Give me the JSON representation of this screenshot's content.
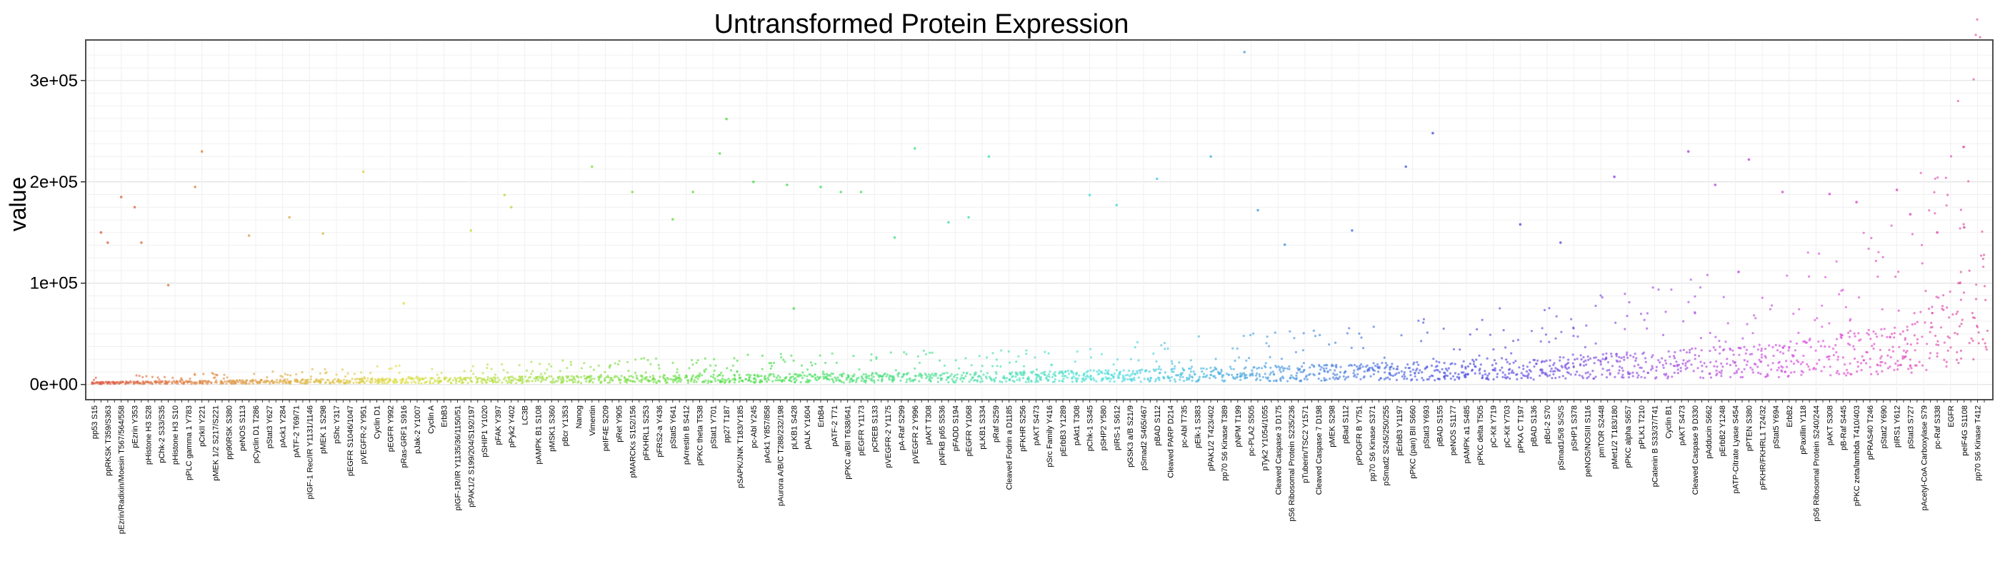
{
  "chart_data": {
    "type": "scatter",
    "title": "Untransformed Protein Expression",
    "xlabel": "",
    "ylabel": "value",
    "ylim": [
      -15000,
      340000
    ],
    "yticks": [
      0,
      100000,
      200000,
      300000
    ],
    "ytick_labels": [
      "0e+00",
      "1e+05",
      "2e+05",
      "3e+05"
    ],
    "grid": true,
    "legend": "none",
    "x_labels_shown": [
      "pp53 S15",
      "ppRKSK T359/S363",
      "pEzrin/Radixin/Moesin T567/564/558",
      "pEzrin Y353",
      "pHistone H3 S28",
      "pChk-2 S33/S35",
      "pHistone H3 S10",
      "pPLC gamma 1 Y783",
      "pCrkII Y221",
      "pMEK 1/2 S217/S221",
      "pp90RSK S380",
      "peNOS S113",
      "pCyclin D1 T286",
      "pStat3 Y627",
      "pAck1 Y284",
      "pATF-2 T69/71",
      "pIGF-1 Rec/IR Y1131/1146",
      "pMEK 1 S298",
      "pShc Y317",
      "pEGFR S1046/1047",
      "pVEGFR-2 Y951",
      "Cyclin D1",
      "pEGFR Y992",
      "pRas-GRF1 S916",
      "pJak-2 Y1007",
      "Cyclin A",
      "ErbB3",
      "pIGF-1R/IR Y1135/36/1150/51",
      "pPAK1/2 S199/204/S192/197",
      "pSHIP1 Y1020",
      "pFAK Y397",
      "pPyk2 Y402",
      "LC3B",
      "pAMPK B1 S108",
      "pMSK1 S360",
      "pBcr Y1353",
      "Nanog",
      "Vimentin",
      "peIF4E S209",
      "pRet Y905",
      "pMARCKs S152/156",
      "pFKHRL1 S253",
      "pFRS2-a Y436",
      "pStat5 Y641",
      "pArrestin B S412",
      "pPKC theta T538",
      "pStat1 Y701",
      "pp27 T187",
      "pSAPK/JNK T183/Y185",
      "pc-Abl Y245",
      "pAck1 Y857/858",
      "pAurora A/B/C T288/232/198",
      "pLKB1 S428",
      "pALK Y1604",
      "ErbB4",
      "pATF-2 T71",
      "pPKC a/BII T638/641",
      "pEGFR Y1173",
      "pCREB S133",
      "pVEGFR-2 Y1175",
      "pA-Raf S299",
      "pVEGFR 2 Y996",
      "pAKT T308",
      "pNFkB p65 S536",
      "pFADD S194",
      "pEGFR Y1068",
      "pLKB1 S334",
      "pRaf S259",
      "Cleaved Fodrin a D1185",
      "pFKHR S256",
      "pAKT S473",
      "pSrc Family Y416",
      "pErbB3 Y1289",
      "pAkt1 T308",
      "pChk-1 S345",
      "pSHP2 Y580",
      "pIRS-1 S612",
      "pGSK3 a/B S21/9",
      "pSmad2 S465/467",
      "pBAD S112",
      "Cleaved PARP D214",
      "pc-Abl T735",
      "pElk-1 S383",
      "pPAK1/2 T423/402",
      "pp70 S6 Kinase T389",
      "pNPM T199",
      "pc-PLA2 S505",
      "pTyk2 Y1054/1055",
      "Cleaved Caspase 3 D175",
      "pS6 Ribosomal Protein S235/236",
      "pTuberin/TSC2 Y1571",
      "Cleaved Caspase 7 D198",
      "pMEK S298",
      "pBad S112",
      "pPDGFR B Y751",
      "pp70 S6 Kinase S371",
      "pSmad2 S245/250/255",
      "pErbB3 Y1197",
      "pPKC (pan) BII S660",
      "pStat3 Y693",
      "pBAD S155",
      "peNOS S1177",
      "pAMPK a1 S485",
      "pPKC delta T505",
      "pC-Kit Y719",
      "pC-Kit Y703",
      "pPKA C T197",
      "pBAD S136",
      "pBcl-2 S70",
      "pSmad1/5/8 S/S/S",
      "pSHP1 S378",
      "peNOS/NOSIII S116",
      "pmTOR S2448",
      "pMet1/2 T183/180",
      "pPKC alpha S657",
      "pPLK1 T210",
      "pCatenin B S33/37/T41",
      "Cyclin B1",
      "pAKT S473",
      "Cleaved Caspase 9 D330",
      "pAdducin S662",
      "pErbB2 Y1248",
      "pATP-Citrate Lyase S454",
      "pPTEN S380",
      "pFKHR/FKHRL1 T24/32",
      "pStat5 Y694",
      "ErbB2",
      "pPaxillin Y118",
      "pS6 Ribosomal Protein S240/244",
      "pAKT S308",
      "pB-Raf S445",
      "pPKC zeta/lambda T410/403",
      "pPRAS40 T246",
      "pStat2 Y690",
      "pIRS1 Y612",
      "pStat3 S727",
      "pAcetyl-CoA Carboxylase S79",
      "pc-Raf S338",
      "EGFR",
      "peIF4G S1108",
      "pp70 S6 Kinase T412",
      "pPRK1/2 T774/816",
      "pPDK1 S241",
      "pERK 1/2 T202/Y204",
      "p4E-BP1 S65",
      "pCofilin S3",
      "p4E-BP1 T37/46"
    ],
    "category_count": 282,
    "series": [
      {
        "color_start": "#f8766d",
        "color_end": "#ff61c3"
      }
    ],
    "baseline_profile": [
      {
        "x": 0,
        "y": 1500
      },
      {
        "x": 30,
        "y": 3000
      },
      {
        "x": 60,
        "y": 4500
      },
      {
        "x": 100,
        "y": 6000
      },
      {
        "x": 140,
        "y": 7500
      },
      {
        "x": 180,
        "y": 11000
      },
      {
        "x": 220,
        "y": 17000
      },
      {
        "x": 250,
        "y": 24000
      },
      {
        "x": 270,
        "y": 35000
      },
      {
        "x": 281,
        "y": 80000
      }
    ],
    "outliers": [
      {
        "x": 1,
        "y": 150000
      },
      {
        "x": 2,
        "y": 140000
      },
      {
        "x": 4,
        "y": 185000
      },
      {
        "x": 6,
        "y": 175000
      },
      {
        "x": 7,
        "y": 140000
      },
      {
        "x": 11,
        "y": 98000
      },
      {
        "x": 15,
        "y": 195000
      },
      {
        "x": 16,
        "y": 230000
      },
      {
        "x": 23,
        "y": 147000
      },
      {
        "x": 29,
        "y": 165000
      },
      {
        "x": 34,
        "y": 149000
      },
      {
        "x": 40,
        "y": 210000
      },
      {
        "x": 46,
        "y": 80000
      },
      {
        "x": 56,
        "y": 152000
      },
      {
        "x": 61,
        "y": 187000
      },
      {
        "x": 62,
        "y": 175000
      },
      {
        "x": 74,
        "y": 215000
      },
      {
        "x": 80,
        "y": 190000
      },
      {
        "x": 86,
        "y": 163000
      },
      {
        "x": 89,
        "y": 190000
      },
      {
        "x": 93,
        "y": 228000
      },
      {
        "x": 94,
        "y": 262000
      },
      {
        "x": 98,
        "y": 200000
      },
      {
        "x": 103,
        "y": 197000
      },
      {
        "x": 104,
        "y": 75000
      },
      {
        "x": 108,
        "y": 195000
      },
      {
        "x": 111,
        "y": 190000
      },
      {
        "x": 114,
        "y": 190000
      },
      {
        "x": 119,
        "y": 145000
      },
      {
        "x": 122,
        "y": 233000
      },
      {
        "x": 127,
        "y": 160000
      },
      {
        "x": 130,
        "y": 165000
      },
      {
        "x": 133,
        "y": 225000
      },
      {
        "x": 148,
        "y": 187000
      },
      {
        "x": 152,
        "y": 177000
      },
      {
        "x": 158,
        "y": 203000
      },
      {
        "x": 166,
        "y": 225000
      },
      {
        "x": 171,
        "y": 328000
      },
      {
        "x": 173,
        "y": 172000
      },
      {
        "x": 177,
        "y": 138000
      },
      {
        "x": 187,
        "y": 152000
      },
      {
        "x": 195,
        "y": 215000
      },
      {
        "x": 199,
        "y": 248000
      },
      {
        "x": 212,
        "y": 158000
      },
      {
        "x": 218,
        "y": 140000
      },
      {
        "x": 226,
        "y": 205000
      },
      {
        "x": 237,
        "y": 230000
      },
      {
        "x": 241,
        "y": 197000
      },
      {
        "x": 246,
        "y": 222000
      },
      {
        "x": 251,
        "y": 190000
      },
      {
        "x": 258,
        "y": 188000
      },
      {
        "x": 262,
        "y": 180000
      },
      {
        "x": 268,
        "y": 192000
      },
      {
        "x": 270,
        "y": 168000
      },
      {
        "x": 274,
        "y": 150000
      },
      {
        "x": 278,
        "y": 155000
      }
    ]
  }
}
